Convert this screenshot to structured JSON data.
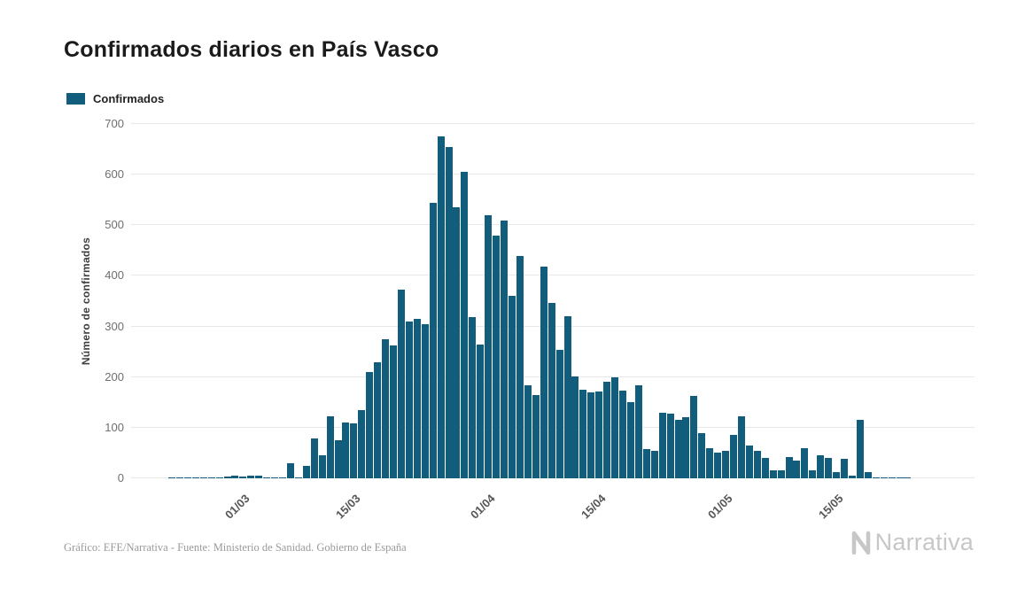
{
  "title": "Confirmados diarios en País Vasco",
  "legend": {
    "label": "Confirmados"
  },
  "footer": {
    "credit": "Gráfico: EFE/Narrativa - Fuente: Ministerio de Sanidad. Gobierno de España"
  },
  "branding": {
    "name": "Narrativa"
  },
  "chart_data": {
    "type": "bar",
    "title": "Confirmados diarios en País Vasco",
    "xlabel": "",
    "ylabel": "Número de confirmados",
    "ylim": [
      0,
      700
    ],
    "y_ticks": [
      0,
      100,
      200,
      300,
      400,
      500,
      600,
      700
    ],
    "grid": true,
    "legend_position": "top-left",
    "series_name": "Confirmados",
    "bar_color": "#125d7c",
    "grid_color": "#e8e8e8",
    "categories": [
      "21/02",
      "22/02",
      "23/02",
      "24/02",
      "25/02",
      "26/02",
      "27/02",
      "28/02",
      "29/02",
      "01/03",
      "02/03",
      "03/03",
      "04/03",
      "05/03",
      "06/03",
      "07/03",
      "08/03",
      "09/03",
      "10/03",
      "11/03",
      "12/03",
      "13/03",
      "14/03",
      "15/03",
      "16/03",
      "17/03",
      "18/03",
      "19/03",
      "20/03",
      "21/03",
      "22/03",
      "23/03",
      "24/03",
      "25/03",
      "26/03",
      "27/03",
      "28/03",
      "29/03",
      "30/03",
      "31/03",
      "01/04",
      "02/04",
      "03/04",
      "04/04",
      "05/04",
      "06/04",
      "07/04",
      "08/04",
      "09/04",
      "10/04",
      "11/04",
      "12/04",
      "13/04",
      "14/04",
      "15/04",
      "16/04",
      "17/04",
      "18/04",
      "19/04",
      "20/04",
      "21/04",
      "22/04",
      "23/04",
      "24/04",
      "25/04",
      "26/04",
      "27/04",
      "28/04",
      "29/04",
      "30/04",
      "01/05",
      "02/05",
      "03/05",
      "04/05",
      "05/05",
      "06/05",
      "07/05",
      "08/05",
      "09/05",
      "10/05",
      "11/05",
      "12/05",
      "13/05",
      "14/05",
      "15/05",
      "16/05",
      "17/05",
      "18/05",
      "19/05",
      "20/05",
      "21/05",
      "22/05",
      "23/05",
      "24/05"
    ],
    "values": [
      1,
      1,
      1,
      1,
      2,
      1,
      2,
      4,
      5,
      4,
      6,
      5,
      2,
      1,
      2,
      30,
      2,
      25,
      78,
      45,
      122,
      75,
      110,
      108,
      135,
      210,
      230,
      275,
      262,
      373,
      310,
      315,
      305,
      545,
      675,
      655,
      535,
      605,
      318,
      265,
      520,
      480,
      510,
      360,
      440,
      183,
      165,
      418,
      347,
      253,
      320,
      202,
      175,
      170,
      172,
      190,
      200,
      173,
      150,
      183,
      57,
      55,
      130,
      128,
      115,
      120,
      163,
      90,
      60,
      50,
      55,
      85,
      122,
      65,
      55,
      40,
      15,
      15,
      42,
      35,
      60,
      15,
      45,
      40,
      12,
      38,
      5,
      115,
      13,
      2,
      1,
      1,
      1,
      1
    ],
    "x_ticks": [
      {
        "label": "01/03",
        "index": 9
      },
      {
        "label": "15/03",
        "index": 23
      },
      {
        "label": "01/04",
        "index": 40
      },
      {
        "label": "15/04",
        "index": 54
      },
      {
        "label": "01/05",
        "index": 70
      },
      {
        "label": "15/05",
        "index": 84
      }
    ]
  }
}
